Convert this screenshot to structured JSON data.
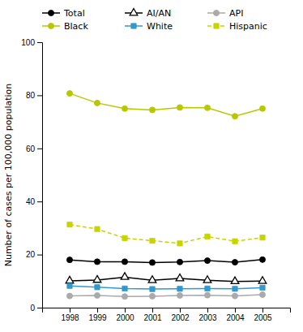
{
  "chart_data": {
    "type": "line",
    "ylabel": "Number of cases per 100,000 population",
    "x": [
      1998,
      1999,
      2000,
      2001,
      2002,
      2003,
      2004,
      2005
    ],
    "xlim": [
      1997,
      2006
    ],
    "xticks": [
      1998,
      1999,
      2000,
      2001,
      2002,
      2003,
      2004,
      2005
    ],
    "ylim": [
      0,
      100
    ],
    "yticks": [
      0,
      20,
      40,
      60,
      80,
      100
    ],
    "grid": false,
    "legend": "top",
    "series": [
      {
        "name": "Total",
        "color": "#000000",
        "marker": "circle",
        "line_style": "solid",
        "values": [
          18.0,
          17.3,
          17.3,
          17.0,
          17.2,
          17.7,
          17.1,
          18.1
        ]
      },
      {
        "name": "Black",
        "color": "#b8c800",
        "marker": "circle",
        "line_style": "solid",
        "values": [
          80.7,
          77.1,
          75.0,
          74.5,
          75.4,
          75.3,
          72.1,
          75.0
        ]
      },
      {
        "name": "AI/AN",
        "color": "#000000",
        "marker": "triangle-open",
        "line_style": "solid",
        "values": [
          10.1,
          10.4,
          11.5,
          10.3,
          11.0,
          10.3,
          9.9,
          10.0
        ]
      },
      {
        "name": "White",
        "color": "#3399cc",
        "marker": "square",
        "line_style": "solid",
        "values": [
          8.2,
          7.7,
          7.2,
          7.0,
          7.1,
          7.2,
          7.1,
          7.5
        ]
      },
      {
        "name": "API",
        "color": "#aaaaaa",
        "marker": "circle",
        "line_style": "solid",
        "values": [
          4.4,
          4.6,
          4.2,
          4.3,
          4.6,
          4.7,
          4.4,
          4.9
        ]
      },
      {
        "name": "Hispanic",
        "color": "#c8d400",
        "marker": "square",
        "line_style": "dashed",
        "values": [
          31.3,
          29.6,
          26.2,
          25.2,
          24.2,
          26.8,
          25.0,
          26.4
        ]
      }
    ]
  }
}
